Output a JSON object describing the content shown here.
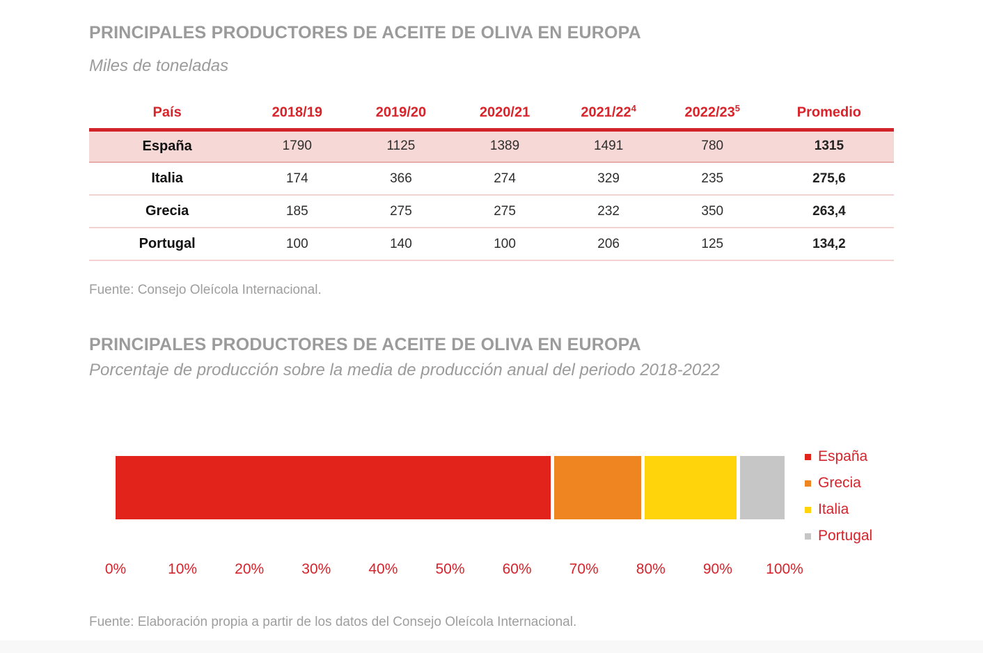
{
  "section1": {
    "title": "PRINCIPALES PRODUCTORES DE ACEITE DE OLIVA EN EUROPA",
    "subtitle": "Miles de toneladas",
    "source": "Fuente: Consejo Oleícola Internacional."
  },
  "section2": {
    "title": "PRINCIPALES PRODUCTORES DE ACEITE DE OLIVA EN EUROPA",
    "subtitle": "Porcentaje de producción sobre la media de producción anual del periodo 2018-2022",
    "source": "Fuente: Elaboración propia a partir de los datos del Consejo Oleícola Internacional."
  },
  "table": {
    "headers": [
      {
        "text": "País",
        "sup": ""
      },
      {
        "text": "2018/19",
        "sup": ""
      },
      {
        "text": "2019/20",
        "sup": ""
      },
      {
        "text": "2020/21",
        "sup": ""
      },
      {
        "text": "2021/22",
        "sup": "4"
      },
      {
        "text": "2022/23",
        "sup": "5"
      },
      {
        "text": "Promedio",
        "sup": ""
      }
    ],
    "rows": [
      {
        "country": "España",
        "values": [
          "1790",
          "1125",
          "1389",
          "1491",
          "780"
        ],
        "promedio": "1315"
      },
      {
        "country": "Italia",
        "values": [
          "174",
          "366",
          "274",
          "329",
          "235"
        ],
        "promedio": "275,6"
      },
      {
        "country": "Grecia",
        "values": [
          "185",
          "275",
          "275",
          "232",
          "350"
        ],
        "promedio": "263,4"
      },
      {
        "country": "Portugal",
        "values": [
          "100",
          "140",
          "100",
          "206",
          "125"
        ],
        "promedio": "134,2"
      }
    ]
  },
  "chart_data": {
    "type": "bar",
    "subtype": "stacked-horizontal",
    "title": "PRINCIPALES PRODUCTORES DE ACEITE DE OLIVA EN EUROPA",
    "subtitle": "Porcentaje de producción sobre la media de producción anual del periodo 2018-2022",
    "series": [
      {
        "name": "España",
        "value_pct": 66.1,
        "color": "#e2231b"
      },
      {
        "name": "Grecia",
        "value_pct": 13.2,
        "color": "#ee8520"
      },
      {
        "name": "Italia",
        "value_pct": 13.9,
        "color": "#ffd40b"
      },
      {
        "name": "Portugal",
        "value_pct": 6.8,
        "color": "#c6c6c7"
      }
    ],
    "x_ticks": [
      "0%",
      "10%",
      "20%",
      "30%",
      "40%",
      "50%",
      "60%",
      "70%",
      "80%",
      "90%",
      "100%"
    ],
    "xlim": [
      0,
      100
    ],
    "grid": false,
    "legend_position": "right"
  },
  "colors": {
    "accent_red": "#d8232a",
    "title_gray": "#9b9b9b",
    "highlight_row_bg": "#f6d8d6",
    "row_separator": "#f3d2d0"
  }
}
